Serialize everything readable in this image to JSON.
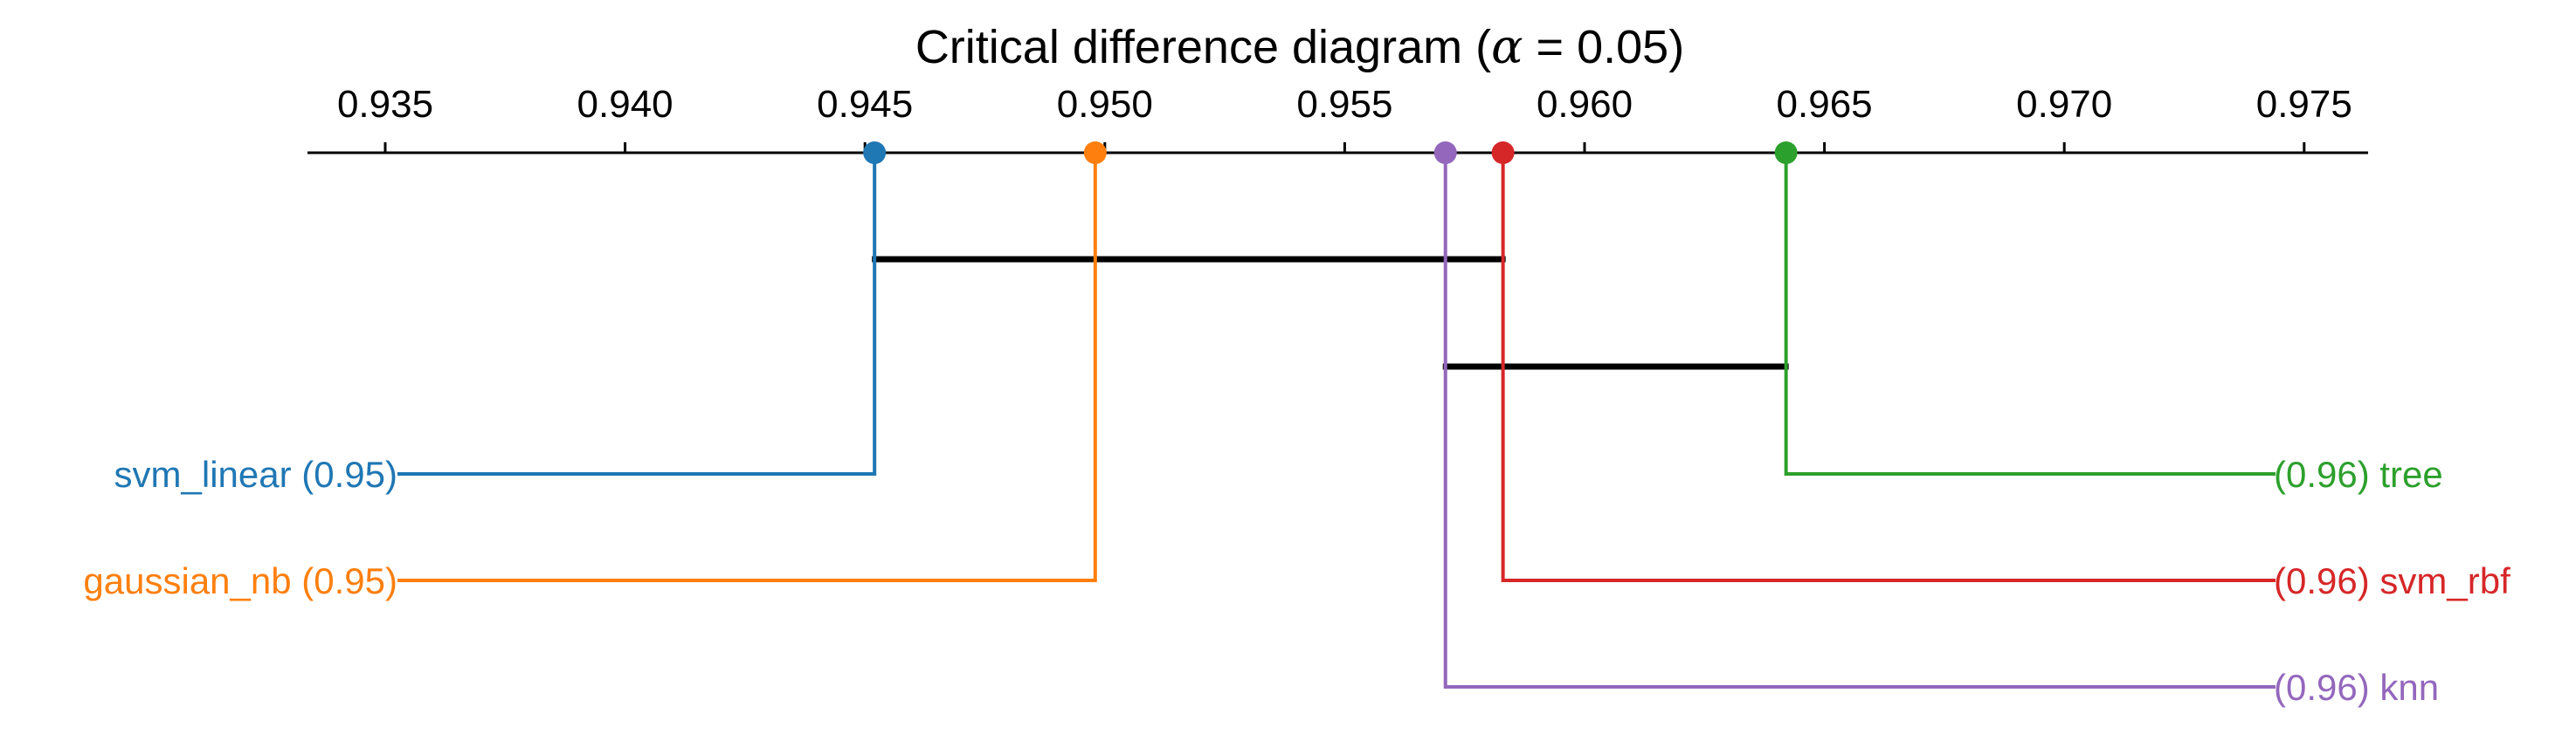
{
  "chart_data": {
    "type": "critical-difference-diagram",
    "title_prefix": "Critical difference diagram (",
    "title_alpha_symbol": "α",
    "title_equals": " = ",
    "title_alpha_value": "0.05",
    "title_suffix": ")",
    "axis": {
      "range": [
        0.9335,
        0.9763
      ],
      "ticks": [
        0.935,
        0.94,
        0.945,
        0.95,
        0.955,
        0.96,
        0.965,
        0.97,
        0.975
      ],
      "tick_labels": [
        "0.935",
        "0.940",
        "0.945",
        "0.950",
        "0.955",
        "0.960",
        "0.965",
        "0.970",
        "0.975"
      ]
    },
    "methods": [
      {
        "name": "svm_linear",
        "value": 0.9452,
        "value_label": "(0.95)",
        "side": "left",
        "color": "#1f77b4"
      },
      {
        "name": "gaussian_nb",
        "value": 0.9498,
        "value_label": "(0.95)",
        "side": "left",
        "color": "#ff7f0e"
      },
      {
        "name": "tree",
        "value": 0.9642,
        "value_label": "(0.96)",
        "side": "right",
        "color": "#2ca02c"
      },
      {
        "name": "svm_rbf",
        "value": 0.9583,
        "value_label": "(0.96)",
        "side": "right",
        "color": "#d62728"
      },
      {
        "name": "knn",
        "value": 0.9571,
        "value_label": "(0.96)",
        "side": "right",
        "color": "#9467bd"
      }
    ],
    "cliques": [
      {
        "from": 0.9452,
        "to": 0.9583
      },
      {
        "from": 0.9571,
        "to": 0.9642
      }
    ]
  }
}
